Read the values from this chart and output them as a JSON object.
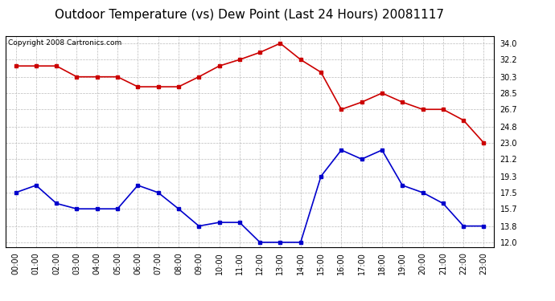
{
  "title": "Outdoor Temperature (vs) Dew Point (Last 24 Hours) 20081117",
  "copyright": "Copyright 2008 Cartronics.com",
  "hours": [
    "00:00",
    "01:00",
    "02:00",
    "03:00",
    "04:00",
    "05:00",
    "06:00",
    "07:00",
    "08:00",
    "09:00",
    "10:00",
    "11:00",
    "12:00",
    "13:00",
    "14:00",
    "15:00",
    "16:00",
    "17:00",
    "18:00",
    "19:00",
    "20:00",
    "21:00",
    "22:00",
    "23:00"
  ],
  "temp": [
    31.5,
    31.5,
    31.5,
    30.3,
    30.3,
    30.3,
    29.2,
    29.2,
    29.2,
    30.3,
    31.5,
    32.2,
    33.0,
    34.0,
    32.2,
    30.8,
    26.7,
    27.5,
    28.5,
    27.5,
    26.7,
    26.7,
    25.5,
    23.0
  ],
  "dew": [
    17.5,
    18.3,
    16.3,
    15.7,
    15.7,
    15.7,
    18.3,
    17.5,
    15.7,
    13.8,
    14.2,
    14.2,
    12.0,
    12.0,
    12.0,
    19.3,
    22.2,
    21.2,
    22.2,
    18.3,
    17.5,
    16.3,
    13.8,
    13.8
  ],
  "temp_color": "#cc0000",
  "dew_color": "#0000cc",
  "yticks": [
    12.0,
    13.8,
    15.7,
    17.5,
    19.3,
    21.2,
    23.0,
    24.8,
    26.7,
    28.5,
    30.3,
    32.2,
    34.0
  ],
  "ylim_min": 11.5,
  "ylim_max": 34.8,
  "background_color": "#ffffff",
  "plot_bg_color": "#ffffff",
  "grid_color": "#bbbbbb",
  "title_fontsize": 11,
  "copyright_fontsize": 6.5,
  "tick_fontsize": 7,
  "marker": "s",
  "markersize": 3,
  "linewidth": 1.2
}
